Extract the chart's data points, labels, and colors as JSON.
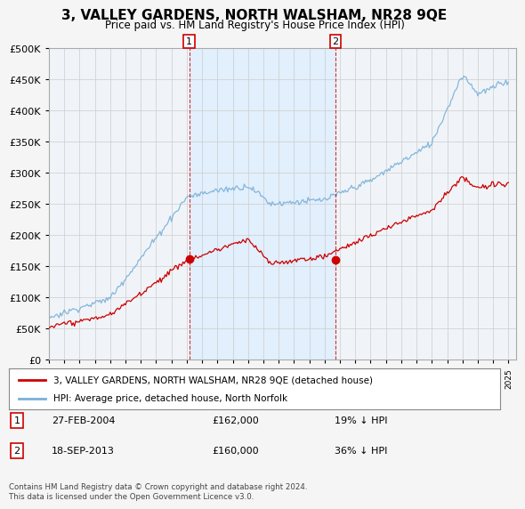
{
  "title": "3, VALLEY GARDENS, NORTH WALSHAM, NR28 9QE",
  "subtitle": "Price paid vs. HM Land Registry's House Price Index (HPI)",
  "legend_line1": "3, VALLEY GARDENS, NORTH WALSHAM, NR28 9QE (detached house)",
  "legend_line2": "HPI: Average price, detached house, North Norfolk",
  "annotation1": {
    "label": "1",
    "date": "27-FEB-2004",
    "price": "£162,000",
    "pct": "19% ↓ HPI"
  },
  "annotation2": {
    "label": "2",
    "date": "18-SEP-2013",
    "price": "£160,000",
    "pct": "36% ↓ HPI"
  },
  "footnote": "Contains HM Land Registry data © Crown copyright and database right 2024.\nThis data is licensed under the Open Government Licence v3.0.",
  "hpi_color": "#7ab0d8",
  "price_color": "#cc0000",
  "shade_color": "#ddeeff",
  "background_color": "#f5f5f5",
  "plot_bg_color": "#f0f4f8",
  "ylim": [
    0,
    500000
  ],
  "yticks": [
    0,
    50000,
    100000,
    150000,
    200000,
    250000,
    300000,
    350000,
    400000,
    450000,
    500000
  ],
  "sale1_year": 2004.15,
  "sale1_price": 162000,
  "sale2_year": 2013.71,
  "sale2_price": 160000,
  "xmin": 1995.0,
  "xmax": 2025.5
}
